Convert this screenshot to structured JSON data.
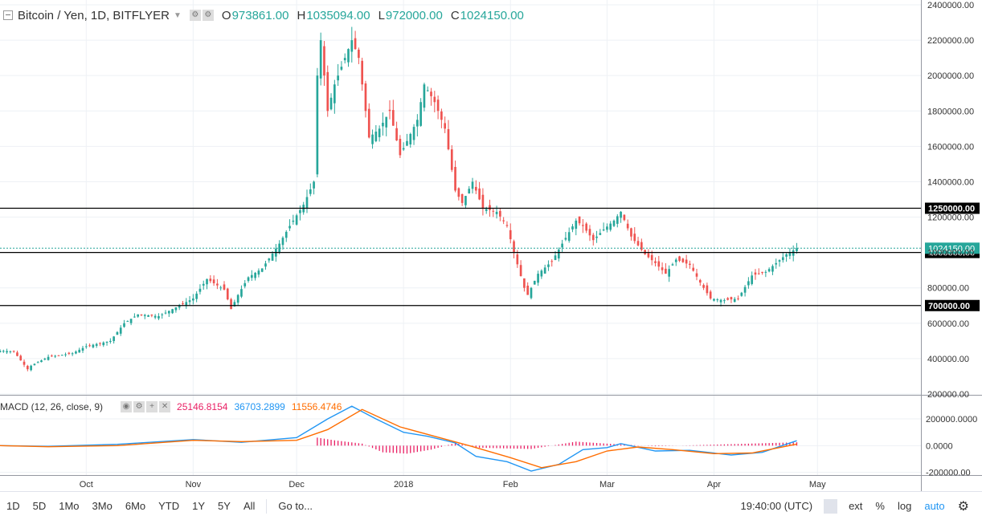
{
  "legend": {
    "symbol": "Bitcoin / Yen, 1D, BITFLYER",
    "o_label": "O",
    "o_value": "973861.00",
    "h_label": "H",
    "h_value": "1035094.00",
    "l_label": "L",
    "l_value": "972000.00",
    "c_label": "C",
    "c_value": "1024150.00"
  },
  "macd_legend": {
    "name": "MACD (12, 26, close, 9)",
    "histogram": "25146.8154",
    "macd": "36703.2899",
    "signal": "11556.4746"
  },
  "colors": {
    "up": "#26a69a",
    "down": "#ef5350",
    "macd_line": "#2196f3",
    "signal_line": "#ff6d00",
    "histogram": "#e91e63",
    "grid": "#eef1f5"
  },
  "bottombar": {
    "ranges": [
      "1D",
      "5D",
      "1Mo",
      "3Mo",
      "6Mo",
      "YTD",
      "1Y",
      "5Y",
      "All"
    ],
    "goto": "Go to...",
    "time": "19:40:00 (UTC)",
    "ext": "ext",
    "pct": "%",
    "log": "log",
    "auto": "auto"
  },
  "chart_data": {
    "type": "candlestick",
    "title": "Bitcoin / Yen, 1D, BITFLYER",
    "ylim": [
      200000,
      2400000
    ],
    "y_ticks": [
      200000,
      400000,
      600000,
      800000,
      1000000,
      1200000,
      1400000,
      1600000,
      1800000,
      2000000,
      2200000,
      2400000
    ],
    "y_tick_labels": [
      "200000.00",
      "400000.00",
      "600000.00",
      "800000.00",
      "1000000.00",
      "1200000.00",
      "1400000.00",
      "1600000.00",
      "1800000.00",
      "2000000.00",
      "2200000.00",
      "2400000.00"
    ],
    "x_labels": [
      {
        "label": "Oct",
        "date": "2017-10-01"
      },
      {
        "label": "Nov",
        "date": "2017-11-01"
      },
      {
        "label": "Dec",
        "date": "2017-12-01"
      },
      {
        "label": "2018",
        "date": "2018-01-01"
      },
      {
        "label": "Feb",
        "date": "2018-02-01"
      },
      {
        "label": "Mar",
        "date": "2018-03-01"
      },
      {
        "label": "Apr",
        "date": "2018-04-01"
      },
      {
        "label": "May",
        "date": "2018-05-01"
      }
    ],
    "x_range": [
      "2017-09-06",
      "2018-05-31"
    ],
    "horizontal_levels": [
      {
        "value": 1250000,
        "label": "1250000.00"
      },
      {
        "value": 1000000,
        "label": "1000000.00"
      },
      {
        "value": 700000,
        "label": "700000.00"
      }
    ],
    "last_price": {
      "value": 1024150,
      "label": "1024150.00"
    },
    "close_path": [
      [
        "2017-09-06",
        445000
      ],
      [
        "2017-09-10",
        440000
      ],
      [
        "2017-09-14",
        340000
      ],
      [
        "2017-09-15",
        360000
      ],
      [
        "2017-09-20",
        410000
      ],
      [
        "2017-09-27",
        430000
      ],
      [
        "2017-10-01",
        470000
      ],
      [
        "2017-10-08",
        500000
      ],
      [
        "2017-10-12",
        600000
      ],
      [
        "2017-10-16",
        650000
      ],
      [
        "2017-10-22",
        640000
      ],
      [
        "2017-10-26",
        680000
      ],
      [
        "2017-11-01",
        740000
      ],
      [
        "2017-11-05",
        850000
      ],
      [
        "2017-11-10",
        790000
      ],
      [
        "2017-11-12",
        680000
      ],
      [
        "2017-11-14",
        760000
      ],
      [
        "2017-11-17",
        860000
      ],
      [
        "2017-11-21",
        910000
      ],
      [
        "2017-11-26",
        1050000
      ],
      [
        "2017-11-29",
        1150000
      ],
      [
        "2017-12-03",
        1270000
      ],
      [
        "2017-12-06",
        1400000
      ],
      [
        "2017-12-07",
        2000000
      ],
      [
        "2017-12-08",
        2200000
      ],
      [
        "2017-12-10",
        1800000
      ],
      [
        "2017-12-12",
        1950000
      ],
      [
        "2017-12-14",
        2050000
      ],
      [
        "2017-12-17",
        2200000
      ],
      [
        "2017-12-19",
        2100000
      ],
      [
        "2017-12-22",
        1650000
      ],
      [
        "2017-12-25",
        1700000
      ],
      [
        "2017-12-28",
        1800000
      ],
      [
        "2017-12-31",
        1550000
      ],
      [
        "2018-01-05",
        1750000
      ],
      [
        "2018-01-07",
        1950000
      ],
      [
        "2018-01-10",
        1850000
      ],
      [
        "2018-01-13",
        1700000
      ],
      [
        "2018-01-16",
        1350000
      ],
      [
        "2018-01-18",
        1280000
      ],
      [
        "2018-01-21",
        1400000
      ],
      [
        "2018-01-24",
        1250000
      ],
      [
        "2018-01-28",
        1230000
      ],
      [
        "2018-01-31",
        1150000
      ],
      [
        "2018-02-02",
        1000000
      ],
      [
        "2018-02-05",
        800000
      ],
      [
        "2018-02-06",
        760000
      ],
      [
        "2018-02-09",
        880000
      ],
      [
        "2018-02-13",
        950000
      ],
      [
        "2018-02-16",
        1050000
      ],
      [
        "2018-02-20",
        1180000
      ],
      [
        "2018-02-22",
        1150000
      ],
      [
        "2018-02-25",
        1070000
      ],
      [
        "2018-02-28",
        1130000
      ],
      [
        "2018-03-03",
        1180000
      ],
      [
        "2018-03-05",
        1230000
      ],
      [
        "2018-03-08",
        1090000
      ],
      [
        "2018-03-12",
        990000
      ],
      [
        "2018-03-15",
        940000
      ],
      [
        "2018-03-18",
        880000
      ],
      [
        "2018-03-21",
        960000
      ],
      [
        "2018-03-25",
        930000
      ],
      [
        "2018-03-28",
        830000
      ],
      [
        "2018-03-31",
        740000
      ],
      [
        "2018-04-04",
        730000
      ],
      [
        "2018-04-08",
        740000
      ],
      [
        "2018-04-12",
        870000
      ],
      [
        "2018-04-16",
        890000
      ],
      [
        "2018-04-19",
        940000
      ],
      [
        "2018-04-22",
        990000
      ],
      [
        "2018-04-23",
        1000000
      ],
      [
        "2018-04-25",
        1024150
      ]
    ],
    "macd": {
      "ylim": [
        -220000,
        350000
      ],
      "y_ticks": [
        -200000,
        0,
        200000
      ],
      "y_tick_labels": [
        "-200000.00",
        "0.0000",
        "200000.0000"
      ],
      "macd_line": [
        [
          "2017-09-06",
          0
        ],
        [
          "2017-09-20",
          -5000
        ],
        [
          "2017-10-10",
          10000
        ],
        [
          "2017-11-01",
          45000
        ],
        [
          "2017-11-15",
          25000
        ],
        [
          "2017-12-01",
          60000
        ],
        [
          "2017-12-10",
          200000
        ],
        [
          "2017-12-17",
          295000
        ],
        [
          "2017-12-24",
          200000
        ],
        [
          "2018-01-01",
          100000
        ],
        [
          "2018-01-08",
          70000
        ],
        [
          "2018-01-16",
          20000
        ],
        [
          "2018-01-22",
          -80000
        ],
        [
          "2018-01-31",
          -120000
        ],
        [
          "2018-02-07",
          -190000
        ],
        [
          "2018-02-15",
          -140000
        ],
        [
          "2018-02-22",
          -30000
        ],
        [
          "2018-03-01",
          -15000
        ],
        [
          "2018-03-05",
          15000
        ],
        [
          "2018-03-15",
          -40000
        ],
        [
          "2018-03-25",
          -35000
        ],
        [
          "2018-04-06",
          -70000
        ],
        [
          "2018-04-15",
          -50000
        ],
        [
          "2018-04-25",
          36703
        ]
      ],
      "signal_line": [
        [
          "2017-09-06",
          0
        ],
        [
          "2017-09-20",
          -8000
        ],
        [
          "2017-10-10",
          0
        ],
        [
          "2017-11-01",
          40000
        ],
        [
          "2017-11-15",
          30000
        ],
        [
          "2017-12-01",
          40000
        ],
        [
          "2017-12-10",
          120000
        ],
        [
          "2017-12-20",
          270000
        ],
        [
          "2017-12-31",
          140000
        ],
        [
          "2018-01-10",
          70000
        ],
        [
          "2018-01-20",
          0
        ],
        [
          "2018-02-01",
          -90000
        ],
        [
          "2018-02-10",
          -165000
        ],
        [
          "2018-02-20",
          -120000
        ],
        [
          "2018-03-01",
          -40000
        ],
        [
          "2018-03-10",
          -10000
        ],
        [
          "2018-03-20",
          -30000
        ],
        [
          "2018-04-01",
          -60000
        ],
        [
          "2018-04-12",
          -55000
        ],
        [
          "2018-04-25",
          11556
        ]
      ],
      "histogram": [
        [
          "2017-12-07",
          60000
        ],
        [
          "2017-12-12",
          40000
        ],
        [
          "2017-12-20",
          15000
        ],
        [
          "2017-12-26",
          -50000
        ],
        [
          "2018-01-02",
          -60000
        ],
        [
          "2018-01-09",
          -30000
        ],
        [
          "2018-01-16",
          20000
        ],
        [
          "2018-01-22",
          -15000
        ],
        [
          "2018-02-07",
          -25000
        ],
        [
          "2018-02-20",
          30000
        ],
        [
          "2018-03-01",
          15000
        ],
        [
          "2018-03-15",
          -5000
        ],
        [
          "2018-04-25",
          25147
        ]
      ]
    }
  }
}
